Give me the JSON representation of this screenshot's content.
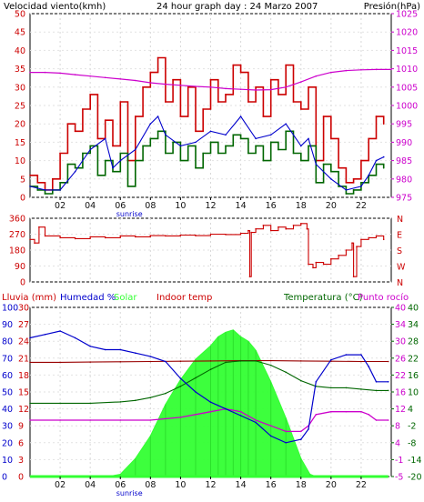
{
  "colors": {
    "wind_speed": "#cc0000",
    "wind_average": "#006600",
    "wind_gust_line": "#0000cc",
    "pressure": "#cc00cc",
    "direction": "#cc0000",
    "humidity": "#0000cc",
    "solar": "#33ff33",
    "indoor_temp": "#990000",
    "temperature": "#006600",
    "dew_point": "#cc00cc",
    "rain": "#cc0000",
    "text_dark": "#111111",
    "axis_left": "#cc0000",
    "axis_right": "#cc00cc"
  },
  "chart_data": [
    {
      "type": "line",
      "title": "24 hour graph day : 24 Marzo 2007",
      "ylabel_left": "Velocidad viento(kmh)",
      "ylabel_right": "Presión(hPa)",
      "x_ticks": [
        "02",
        "04",
        "06",
        "08",
        "10",
        "12",
        "14",
        "16",
        "18",
        "20",
        "22"
      ],
      "x_note": "sunrise",
      "ylim_left": [
        0,
        50
      ],
      "yticks_left": [
        0,
        5,
        10,
        15,
        20,
        25,
        30,
        35,
        40,
        45,
        50
      ],
      "ylim_right": [
        975,
        1025
      ],
      "yticks_right": [
        975,
        980,
        985,
        990,
        995,
        1000,
        1005,
        1010,
        1015,
        1020,
        1025
      ],
      "series": [
        {
          "key": "gust",
          "x": [
            0.0,
            0.5,
            1.0,
            1.5,
            2.0,
            2.5,
            3.0,
            3.5,
            4.0,
            4.5,
            5.0,
            5.5,
            6.0,
            6.5,
            7.0,
            7.5,
            8.0,
            8.5,
            9.0,
            9.5,
            10.0,
            10.5,
            11.0,
            11.5,
            12.0,
            12.5,
            13.0,
            13.5,
            14.0,
            14.5,
            15.0,
            15.5,
            16.0,
            16.5,
            17.0,
            17.5,
            18.0,
            18.5,
            19.0,
            19.5,
            20.0,
            20.5,
            21.0,
            21.5,
            22.0,
            22.5,
            23.0,
            23.5
          ],
          "values": [
            6,
            4,
            2,
            5,
            12,
            20,
            18,
            24,
            28,
            16,
            21,
            14,
            26,
            10,
            22,
            30,
            34,
            38,
            26,
            32,
            22,
            30,
            18,
            24,
            32,
            26,
            28,
            36,
            34,
            26,
            30,
            22,
            32,
            28,
            36,
            26,
            24,
            30,
            10,
            22,
            16,
            8,
            4,
            5,
            10,
            16,
            22,
            20
          ]
        },
        {
          "key": "average",
          "x": [
            0.0,
            0.5,
            1.0,
            1.5,
            2.0,
            2.5,
            3.0,
            3.5,
            4.0,
            4.5,
            5.0,
            5.5,
            6.0,
            6.5,
            7.0,
            7.5,
            8.0,
            8.5,
            9.0,
            9.5,
            10.0,
            10.5,
            11.0,
            11.5,
            12.0,
            12.5,
            13.0,
            13.5,
            14.0,
            14.5,
            15.0,
            15.5,
            16.0,
            16.5,
            17.0,
            17.5,
            18.0,
            18.5,
            19.0,
            19.5,
            20.0,
            20.5,
            21.0,
            21.5,
            22.0,
            22.5,
            23.0,
            23.5
          ],
          "values": [
            3,
            2,
            1,
            2,
            4,
            9,
            8,
            12,
            14,
            6,
            10,
            7,
            12,
            3,
            10,
            14,
            16,
            18,
            12,
            15,
            10,
            14,
            8,
            12,
            15,
            12,
            14,
            17,
            16,
            12,
            14,
            10,
            15,
            13,
            18,
            12,
            10,
            14,
            4,
            9,
            7,
            3,
            1,
            2,
            4,
            6,
            9,
            8
          ]
        },
        {
          "key": "gust_line",
          "x": [
            0.0,
            1.0,
            2.0,
            3.0,
            4.0,
            5.0,
            5.5,
            6.0,
            7.0,
            8.0,
            8.5,
            9.0,
            10.0,
            11.0,
            12.0,
            13.0,
            14.0,
            15.0,
            16.0,
            17.0,
            18.0,
            18.5,
            19.0,
            20.0,
            21.0,
            22.0,
            22.5,
            23.0,
            23.5
          ],
          "values": [
            3,
            2,
            2,
            7,
            13,
            16,
            8,
            10,
            13,
            20,
            22,
            17,
            14,
            15,
            18,
            17,
            22,
            16,
            17,
            20,
            14,
            16,
            9,
            5,
            2,
            3,
            6,
            10,
            11
          ]
        },
        {
          "key": "pressure",
          "x": [
            0.0,
            1.0,
            2.0,
            3.0,
            4.0,
            5.0,
            6.0,
            7.0,
            8.0,
            9.0,
            10.0,
            11.0,
            12.0,
            13.0,
            14.0,
            15.0,
            16.0,
            17.0,
            18.0,
            19.0,
            20.0,
            21.0,
            22.0,
            23.0,
            24.0
          ],
          "values": [
            1009,
            1009,
            1008.8,
            1008.4,
            1008,
            1007.6,
            1007.2,
            1006.8,
            1006.2,
            1005.8,
            1005.5,
            1005.2,
            1005,
            1004.6,
            1004.4,
            1004.2,
            1004.3,
            1005,
            1006.4,
            1008,
            1009,
            1009.5,
            1009.7,
            1009.8,
            1009.8
          ]
        }
      ]
    },
    {
      "type": "line",
      "ylim": [
        0,
        360
      ],
      "yticks_left": [
        0,
        90,
        180,
        270,
        360
      ],
      "yticks_right": [
        "N",
        "W",
        "S",
        "E",
        "N"
      ],
      "series": [
        {
          "key": "direction",
          "x": [
            0.0,
            0.3,
            0.6,
            1.0,
            2.0,
            3.0,
            4.0,
            5.0,
            6.0,
            7.0,
            8.0,
            9.0,
            10.0,
            11.0,
            12.0,
            13.0,
            14.0,
            14.5,
            14.6,
            14.7,
            15.0,
            15.5,
            16.0,
            16.5,
            17.0,
            17.5,
            18.0,
            18.4,
            18.5,
            18.8,
            19.0,
            19.5,
            20.0,
            20.5,
            21.0,
            21.4,
            21.5,
            21.7,
            22.0,
            22.5,
            23.0,
            23.5
          ],
          "values": [
            240,
            220,
            310,
            260,
            250,
            245,
            255,
            250,
            260,
            255,
            262,
            260,
            265,
            262,
            270,
            268,
            275,
            290,
            30,
            280,
            300,
            320,
            290,
            310,
            300,
            320,
            330,
            300,
            100,
            80,
            110,
            100,
            130,
            150,
            180,
            220,
            30,
            200,
            240,
            250,
            260,
            240
          ]
        }
      ]
    },
    {
      "type": "line",
      "labels": [
        "Lluvia (mm)",
        "Humedad %",
        "Solar",
        "Indoor temp",
        "Temperatura (°C)",
        "Punto rocío"
      ],
      "x_ticks": [
        "02",
        "04",
        "06",
        "08",
        "10",
        "12",
        "14",
        "16",
        "18",
        "20",
        "22"
      ],
      "x_note": "sunrise",
      "yticks_rain": [
        0,
        3,
        6,
        9,
        12,
        15,
        18,
        21,
        24,
        27,
        30
      ],
      "yticks_humidity": [
        0,
        10,
        20,
        30,
        40,
        50,
        60,
        70,
        80,
        90,
        100
      ],
      "ylim_temp": [
        -20,
        40
      ],
      "yticks_temp_a": [
        -5,
        -1,
        4,
        8,
        12,
        16,
        22,
        26,
        30,
        34,
        40
      ],
      "yticks_temp_b": [
        -20,
        -14,
        -8,
        -2,
        4,
        10,
        16,
        22,
        28,
        34,
        40
      ],
      "series": [
        {
          "key": "humidity",
          "x": [
            0,
            1,
            2,
            3,
            4,
            5,
            6,
            7,
            8,
            9,
            10,
            11,
            12,
            13,
            14,
            15,
            16,
            17,
            18,
            18.5,
            19,
            20,
            21,
            22,
            22.5,
            23,
            23.8
          ],
          "values": [
            82,
            84,
            86,
            82,
            77,
            75,
            75,
            73,
            71,
            68,
            58,
            50,
            44,
            40,
            36,
            32,
            24,
            20,
            22,
            28,
            56,
            69,
            72,
            72,
            65,
            56,
            56
          ]
        },
        {
          "key": "solar",
          "x": [
            0,
            5.2,
            6,
            7,
            8,
            9,
            10,
            11,
            12,
            12.5,
            13,
            13.5,
            14,
            14.5,
            15,
            16,
            17,
            18,
            18.6,
            19,
            23.8
          ],
          "values": [
            0,
            0,
            10,
            80,
            180,
            320,
            430,
            520,
            580,
            620,
            640,
            650,
            620,
            600,
            560,
            420,
            260,
            80,
            10,
            0,
            0
          ]
        },
        {
          "key": "indoor_temp",
          "x": [
            0,
            2,
            4,
            6,
            8,
            10,
            12,
            14,
            16,
            18,
            20,
            22,
            23.8
          ],
          "values": [
            20.5,
            20.5,
            20.6,
            20.7,
            20.8,
            20.9,
            21.0,
            21.1,
            21.1,
            21.0,
            20.9,
            20.8,
            20.8
          ]
        },
        {
          "key": "temperature",
          "x": [
            0,
            2,
            4,
            6,
            7,
            8,
            9,
            10,
            11,
            12,
            13,
            14,
            15,
            16,
            17,
            18,
            19,
            20,
            21,
            22,
            23,
            23.8
          ],
          "values": [
            6,
            6,
            6,
            6.5,
            7,
            8,
            9.5,
            12,
            15,
            18,
            20.5,
            21,
            21,
            19.5,
            17,
            14,
            12,
            11.5,
            11.5,
            11,
            10.5,
            10.5
          ]
        },
        {
          "key": "dew_point",
          "x": [
            0,
            2,
            4,
            6,
            8,
            10,
            11,
            12,
            13,
            14,
            15,
            16,
            17,
            18,
            18.5,
            19,
            20,
            21,
            22,
            22.5,
            23,
            23.8
          ],
          "values": [
            0,
            0,
            0,
            0,
            0,
            1,
            2,
            3,
            4,
            3,
            0,
            -2,
            -4,
            -4,
            -2,
            2,
            3,
            3,
            3,
            2,
            0,
            0
          ]
        },
        {
          "key": "rain",
          "x": [
            0,
            23.8
          ],
          "values": [
            0,
            0
          ]
        }
      ]
    }
  ]
}
